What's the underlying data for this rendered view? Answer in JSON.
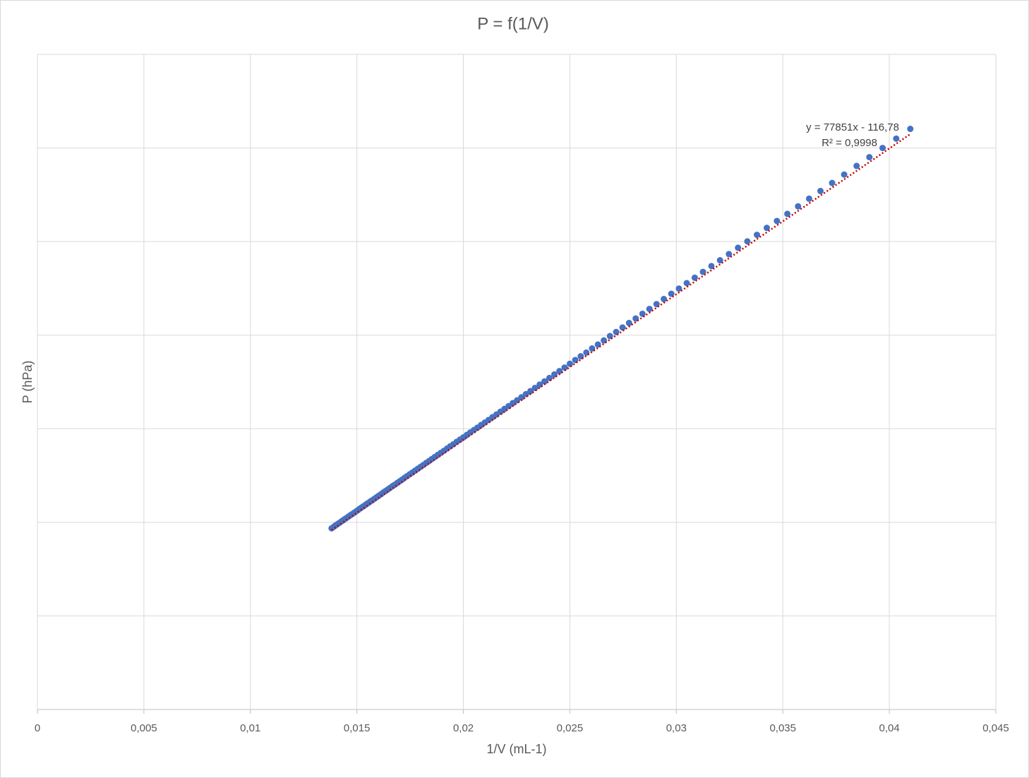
{
  "chart_data": {
    "type": "scatter",
    "title": "P = f(1/V)",
    "x_label": "1/V (mL-1)",
    "y_label": "P (hPa)",
    "xlim": [
      0,
      0.045
    ],
    "xticks": [
      0,
      {
        "value": 0.005,
        "label": "0,005"
      },
      {
        "value": 0.01,
        "label": "0,01"
      },
      {
        "value": 0.015,
        "label": "0,015"
      },
      {
        "value": 0.02,
        "label": "0,02"
      },
      {
        "value": 0.025,
        "label": "0,025"
      },
      {
        "value": 0.03,
        "label": "0,03"
      },
      {
        "value": 0.035,
        "label": "0,035"
      },
      {
        "value": 0.04,
        "label": "0,04"
      },
      {
        "value": 0.045,
        "label": "0,045"
      }
    ],
    "ylim": [
      0,
      3500
    ],
    "yticks": [
      0,
      500,
      1000,
      1500,
      2000,
      2500,
      3000,
      3500
    ],
    "ytick_labels": false,
    "grid": true,
    "series": [
      {
        "color": "#4472c4",
        "x": [
          0.040984,
          0.040323,
          0.039683,
          0.039063,
          0.038462,
          0.037879,
          0.037313,
          0.036765,
          0.036232,
          0.035714,
          0.035211,
          0.034722,
          0.034247,
          0.033784,
          0.033333,
          0.032895,
          0.032468,
          0.032051,
          0.031646,
          0.03125,
          0.030864,
          0.030488,
          0.03012,
          0.029762,
          0.029412,
          0.02907,
          0.028736,
          0.028409,
          0.02809,
          0.027778,
          0.027473,
          0.027174,
          0.026882,
          0.026596,
          0.026316,
          0.026042,
          0.025773,
          0.02551,
          0.025253,
          0.025,
          0.024752,
          0.02451,
          0.024272,
          0.024038,
          0.02381,
          0.023585,
          0.023364,
          0.023148,
          0.022936,
          0.022727,
          0.022523,
          0.022321,
          0.022124,
          0.02193,
          0.021739,
          0.021552,
          0.021368,
          0.021186,
          0.021008,
          0.020833,
          0.020661,
          0.020492,
          0.020325,
          0.020161,
          0.02,
          0.019841,
          0.019685,
          0.019531,
          0.01938,
          0.019231,
          0.019084,
          0.018939,
          0.018797,
          0.018657,
          0.018519,
          0.018382,
          0.018248,
          0.018116,
          0.017986,
          0.017857,
          0.017731,
          0.017606,
          0.017483,
          0.017361,
          0.017241,
          0.017123,
          0.017007,
          0.016892,
          0.016779,
          0.016667,
          0.016556,
          0.016447,
          0.01634,
          0.016234,
          0.016129,
          0.016026,
          0.015924,
          0.015823,
          0.015723,
          0.015625,
          0.015528,
          0.015432,
          0.015337,
          0.015244,
          0.015152,
          0.01506,
          0.01497,
          0.014881,
          0.014793,
          0.014706,
          0.01462,
          0.014535,
          0.014451,
          0.014368,
          0.014286,
          0.014205,
          0.014124,
          0.014045,
          0.013966,
          0.013889,
          0.013812
        ],
        "values": [
          3102,
          3050,
          3000,
          2951,
          2904,
          2858,
          2813,
          2770,
          2729,
          2688,
          2648,
          2610,
          2573,
          2536,
          2501,
          2467,
          2433,
          2400,
          2369,
          2338,
          2307,
          2278,
          2249,
          2221,
          2193,
          2166,
          2140,
          2114,
          2089,
          2065,
          2041,
          2017,
          1995,
          1972,
          1950,
          1929,
          1907,
          1887,
          1867,
          1847,
          1827,
          1808,
          1790,
          1771,
          1753,
          1736,
          1718,
          1701,
          1685,
          1668,
          1652,
          1637,
          1621,
          1606,
          1591,
          1576,
          1562,
          1547,
          1533,
          1520,
          1506,
          1493,
          1480,
          1467,
          1454,
          1442,
          1430,
          1417,
          1406,
          1394,
          1382,
          1371,
          1360,
          1349,
          1338,
          1327,
          1317,
          1306,
          1296,
          1286,
          1276,
          1266,
          1257,
          1247,
          1238,
          1228,
          1219,
          1210,
          1201,
          1193,
          1184,
          1175,
          1167,
          1159,
          1150,
          1142,
          1134,
          1126,
          1118,
          1111,
          1103,
          1096,
          1088,
          1081,
          1074,
          1066,
          1059,
          1052,
          1045,
          1039,
          1032,
          1025,
          1019,
          1012,
          1006,
          999,
          993,
          987,
          981,
          974,
          968
        ]
      }
    ],
    "trendline": {
      "slope": 77851,
      "intercept": -116.78,
      "color": "#c00000",
      "equation": "y = 77851x - 116,78",
      "r2": "R² = 0,9998"
    }
  }
}
